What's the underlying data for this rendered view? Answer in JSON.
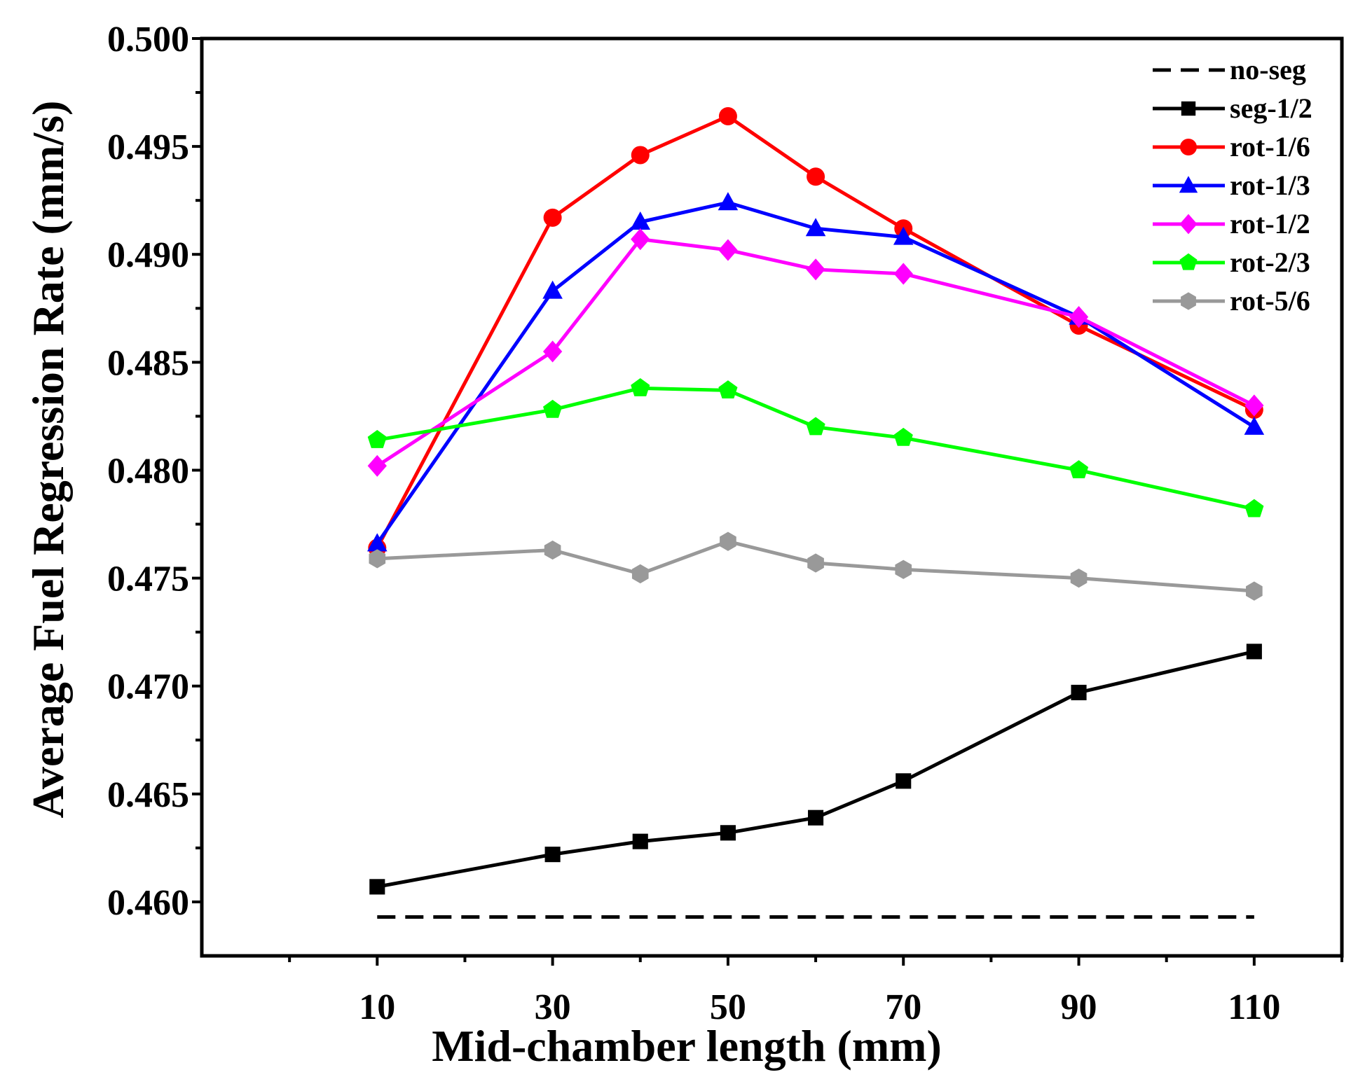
{
  "chart_data": {
    "type": "line",
    "xlabel": "Mid-chamber length (mm)",
    "ylabel": "Average Fuel Regression Rate (mm/s)",
    "x_ticks": [
      10,
      30,
      50,
      70,
      90,
      110
    ],
    "y_ticks": [
      "0.460",
      "0.465",
      "0.470",
      "0.475",
      "0.480",
      "0.485",
      "0.490",
      "0.495",
      "0.500"
    ],
    "xlim": [
      -10,
      120
    ],
    "ylim": [
      0.4575,
      0.5
    ],
    "grid": false,
    "legend_position": "top-right",
    "x": [
      10,
      30,
      40,
      50,
      60,
      70,
      90,
      110
    ],
    "series": [
      {
        "name": "no-seg",
        "color": "#000000",
        "marker": "none",
        "dashed": true,
        "x": [
          10,
          110
        ],
        "values": [
          0.4593,
          0.4593
        ]
      },
      {
        "name": "seg-1/2",
        "color": "#000000",
        "marker": "square",
        "values": [
          0.4607,
          0.4622,
          0.4628,
          0.4632,
          0.4639,
          0.4656,
          0.4697,
          0.4716
        ]
      },
      {
        "name": "rot-1/6",
        "color": "#ff0000",
        "marker": "circle",
        "values": [
          0.4764,
          0.4917,
          0.4946,
          0.4964,
          0.4936,
          0.4912,
          0.4867,
          0.4828
        ]
      },
      {
        "name": "rot-1/3",
        "color": "#0000ff",
        "marker": "triangle",
        "values": [
          0.4766,
          0.4883,
          0.4915,
          0.4924,
          0.4912,
          0.4908,
          0.4871,
          0.482
        ]
      },
      {
        "name": "rot-1/2",
        "color": "#ff00ff",
        "marker": "diamond",
        "values": [
          0.4802,
          0.4855,
          0.4907,
          0.4902,
          0.4893,
          0.4891,
          0.4871,
          0.483
        ]
      },
      {
        "name": "rot-2/3",
        "color": "#00ff00",
        "marker": "pentagon",
        "values": [
          0.4814,
          0.4828,
          0.4838,
          0.4837,
          0.482,
          0.4815,
          0.48,
          0.4782
        ]
      },
      {
        "name": "rot-5/6",
        "color": "#999999",
        "marker": "hexagon",
        "values": [
          0.4759,
          0.4763,
          0.4752,
          0.4767,
          0.4757,
          0.4754,
          0.475,
          0.4744
        ]
      }
    ]
  }
}
